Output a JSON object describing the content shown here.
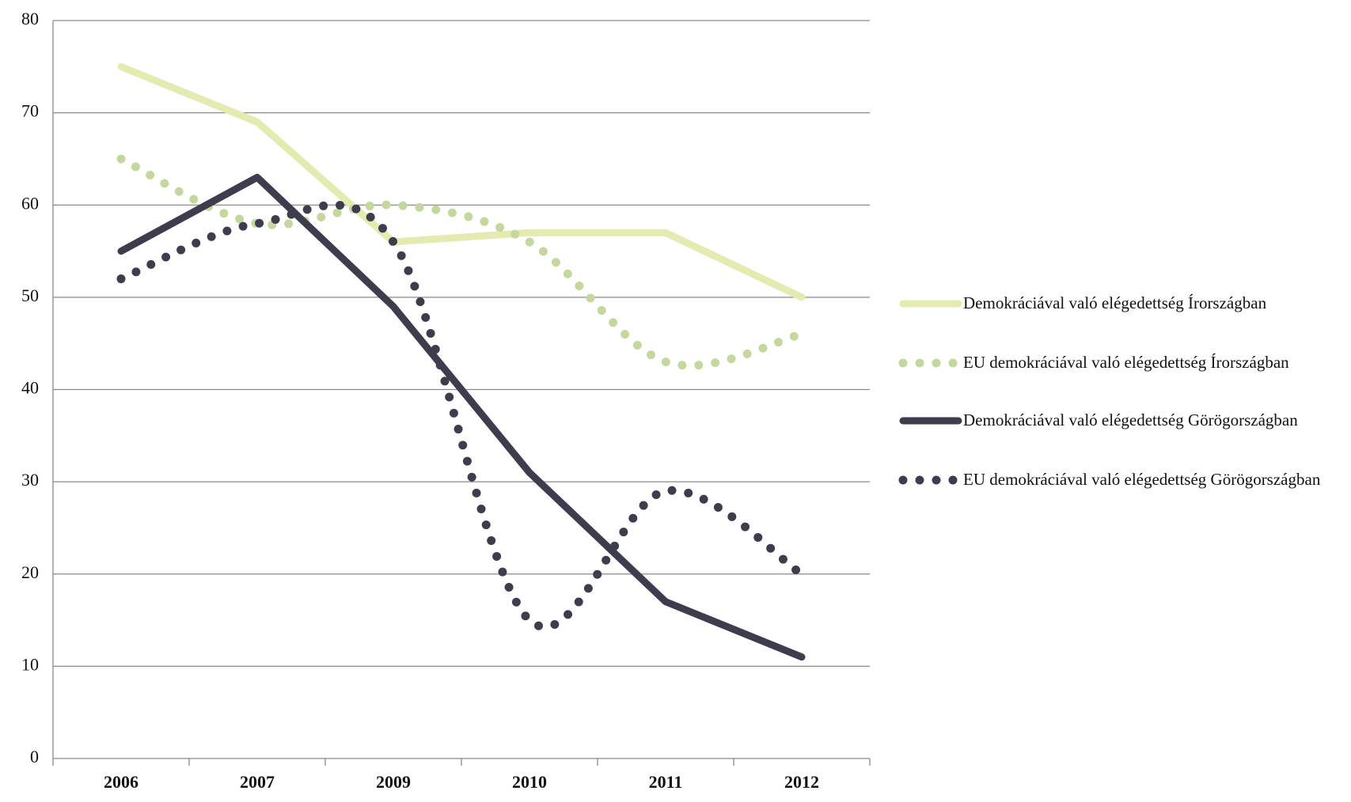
{
  "chart_data": {
    "type": "line",
    "categories": [
      "2006",
      "2007",
      "2009",
      "2010",
      "2011",
      "2012"
    ],
    "series": [
      {
        "name": "Demokráciával való elégedettség Írországban",
        "color": "#e5eab0",
        "style": "solid",
        "values": [
          75,
          69,
          56,
          57,
          57,
          50
        ]
      },
      {
        "name": "EU demokráciával való elégedettség Írországban",
        "color": "#c4d89e",
        "style": "dotted",
        "values": [
          65,
          58,
          60,
          56,
          43,
          46
        ]
      },
      {
        "name": "Demokráciával való elégedettség Görögországban",
        "color": "#3d3d4d",
        "style": "solid",
        "values": [
          55,
          63,
          49,
          31,
          17,
          11
        ]
      },
      {
        "name": "EU demokráciával való elégedettség Görögországban",
        "color": "#3d3d4d",
        "style": "dotted",
        "values": [
          52,
          58,
          56,
          15,
          29,
          20
        ]
      }
    ],
    "ylim": [
      0,
      80
    ],
    "yticks": [
      0,
      10,
      20,
      30,
      40,
      50,
      60,
      70,
      80
    ],
    "grid": true,
    "legend": "right"
  }
}
